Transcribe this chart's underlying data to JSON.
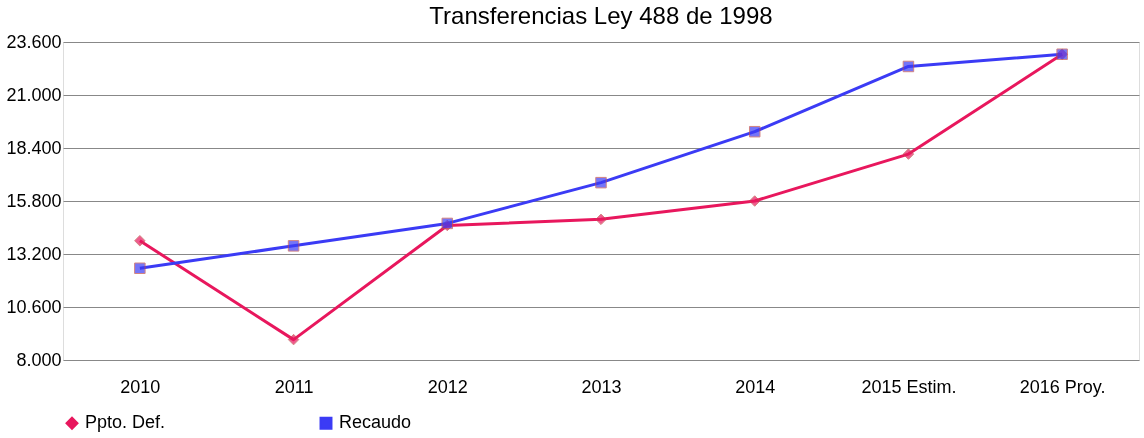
{
  "chart_data": {
    "type": "line",
    "title": "Transferencias Ley 488 de 1998",
    "categories": [
      "2010",
      "2011",
      "2012",
      "2013",
      "2014",
      "2015 Estim.",
      "2016 Proy."
    ],
    "series": [
      {
        "name": "Ppto. Def.",
        "color": "#e8175d",
        "marker": "diamond",
        "values": [
          13850,
          9000,
          14600,
          14900,
          15800,
          18100,
          23000
        ]
      },
      {
        "name": "Recaudo",
        "color": "#3b3bf5",
        "marker": "square",
        "values": [
          12500,
          13600,
          14700,
          16700,
          19200,
          22400,
          23000
        ]
      }
    ],
    "ylim": [
      8000,
      23600
    ],
    "yticks": [
      {
        "value": 8000,
        "label": "8.000"
      },
      {
        "value": 10600,
        "label": "10.600"
      },
      {
        "value": 13200,
        "label": "13.200"
      },
      {
        "value": 15800,
        "label": "15.800"
      },
      {
        "value": 18400,
        "label": "18.400"
      },
      {
        "value": 21000,
        "label": "21.000"
      },
      {
        "value": 23600,
        "label": "23.600"
      }
    ],
    "grid": "y",
    "legend": "bottom",
    "line_style": "solid"
  }
}
